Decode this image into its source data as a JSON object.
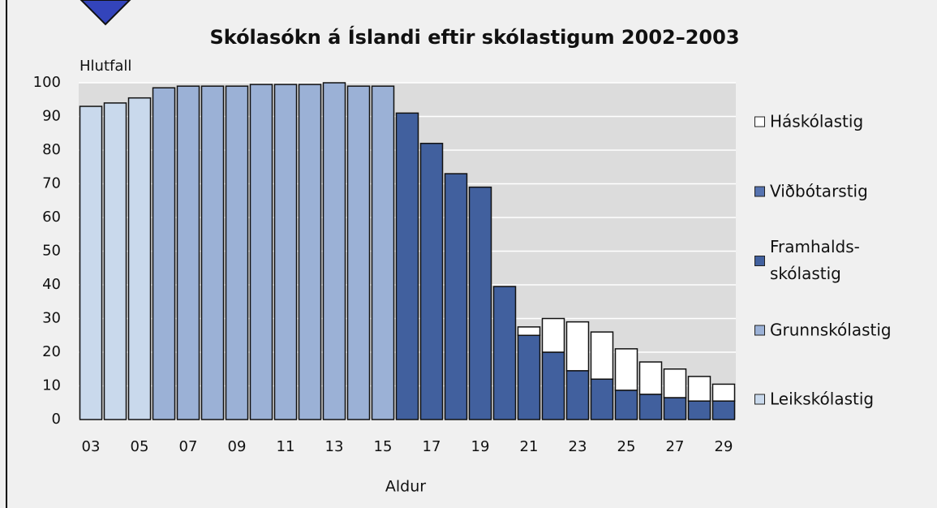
{
  "chart_data": {
    "type": "stacked_bar",
    "title": "Skólasókn á Íslandi eftir skólastigum 2002–2003",
    "y_label": "Hlutfall",
    "x_label": "Aldur",
    "categories": [
      "03",
      null,
      "05",
      null,
      "07",
      null,
      "09",
      null,
      "11",
      null,
      "13",
      null,
      "15",
      null,
      "17",
      null,
      "19",
      null,
      "21",
      null,
      "23",
      null,
      "25",
      null,
      "27",
      null,
      "29"
    ],
    "series": [
      {
        "name": "Leikskólastig",
        "color": "#c9d9ec",
        "values": [
          93,
          94,
          95.5,
          null,
          null,
          null,
          null,
          null,
          null,
          null,
          null,
          null,
          null,
          null,
          null,
          null,
          null,
          null,
          null,
          null,
          null,
          null,
          null,
          null,
          null,
          null,
          null
        ]
      },
      {
        "name": "Grunnskólastig",
        "color": "#9bb1d6",
        "values": [
          null,
          null,
          null,
          98.5,
          99,
          99,
          99,
          99.5,
          99.5,
          99.5,
          100,
          99,
          99,
          null,
          null,
          null,
          null,
          null,
          null,
          null,
          null,
          null,
          null,
          null,
          null,
          null,
          null
        ]
      },
      {
        "name": "Framhalds-\nskólastig",
        "color": "#41609e",
        "values": [
          null,
          null,
          null,
          null,
          null,
          null,
          null,
          null,
          null,
          null,
          null,
          null,
          null,
          91,
          82,
          73,
          69,
          39.5,
          25,
          20,
          14.5,
          12,
          8.7,
          7.5,
          6.5,
          5.5,
          5.5
        ]
      },
      {
        "name": "Viðbótarstig",
        "color": "#5673b0",
        "values": [
          null,
          null,
          null,
          null,
          null,
          null,
          null,
          null,
          null,
          null,
          null,
          null,
          null,
          null,
          null,
          null,
          null,
          null,
          null,
          null,
          null,
          null,
          null,
          null,
          null,
          null,
          null
        ]
      },
      {
        "name": "Háskólastig",
        "color": "#ffffff",
        "values": [
          null,
          null,
          null,
          null,
          null,
          null,
          null,
          null,
          null,
          null,
          null,
          null,
          null,
          null,
          null,
          null,
          null,
          null,
          2.5,
          10,
          14.5,
          14,
          12.3,
          9.6,
          8.5,
          7.3,
          5
        ]
      }
    ],
    "ylim": [
      0,
      100
    ],
    "yticks": [
      0,
      10,
      20,
      30,
      40,
      50,
      60,
      70,
      80,
      90,
      100
    ],
    "grid": true
  }
}
